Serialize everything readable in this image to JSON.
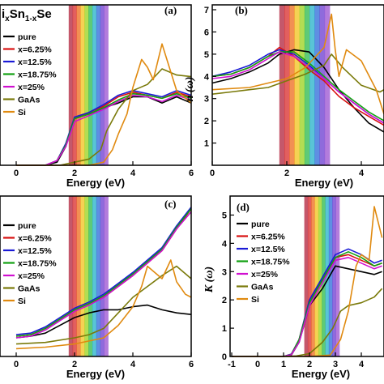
{
  "figure": {
    "title_base": "i",
    "title_sub1": "x",
    "title_mid": "Sn",
    "title_sub2": "1-x",
    "title_end": "Se"
  },
  "colors": {
    "pure": "#000000",
    "x=6.25%": "#d81010",
    "x=12.5%": "#1a1ad6",
    "x=18.75%": "#11a011",
    "x=25%": "#d010d0",
    "GaAs": "#7a7a0a",
    "Si": "#e08a10"
  },
  "chart_data": [
    {
      "type": "line",
      "panel_label": "(a)",
      "xlabel": "Energy (eV)",
      "ylabel": "",
      "xlim": [
        0,
        6
      ],
      "ylim": [
        0,
        1
      ],
      "xticks": [
        "0",
        "2",
        "4",
        "6"
      ],
      "legend_position": "left",
      "rainbow_band_ev": [
        1.8,
        3.15
      ],
      "series": [
        {
          "name": "pure",
          "x": [
            0,
            1,
            1.4,
            1.7,
            2.0,
            2.5,
            3.0,
            3.5,
            4.0,
            4.5,
            5.0,
            5.5,
            6.0
          ],
          "values": [
            0,
            0,
            0.02,
            0.12,
            0.3,
            0.33,
            0.37,
            0.4,
            0.44,
            0.44,
            0.4,
            0.44,
            0.4
          ]
        },
        {
          "name": "x=6.25%",
          "x": [
            0,
            1,
            1.4,
            1.7,
            2.0,
            2.5,
            3.0,
            3.5,
            4.0,
            4.5,
            5.0,
            5.5,
            6.0
          ],
          "values": [
            0,
            0,
            0.03,
            0.13,
            0.3,
            0.34,
            0.38,
            0.44,
            0.47,
            0.45,
            0.43,
            0.47,
            0.44
          ]
        },
        {
          "name": "x=12.5%",
          "x": [
            0,
            1,
            1.4,
            1.7,
            2.0,
            2.5,
            3.0,
            3.5,
            4.0,
            4.5,
            5.0,
            5.5,
            6.0
          ],
          "values": [
            0,
            0,
            0.03,
            0.14,
            0.31,
            0.34,
            0.39,
            0.45,
            0.48,
            0.46,
            0.44,
            0.48,
            0.45
          ]
        },
        {
          "name": "x=18.75%",
          "x": [
            0,
            1,
            1.4,
            1.7,
            2.0,
            2.5,
            3.0,
            3.5,
            4.0,
            4.5,
            5.0,
            5.5,
            6.0
          ],
          "values": [
            0,
            0,
            0.03,
            0.13,
            0.3,
            0.33,
            0.37,
            0.42,
            0.46,
            0.45,
            0.43,
            0.46,
            0.43
          ]
        },
        {
          "name": "x=25%",
          "x": [
            0,
            1,
            1.4,
            1.7,
            2.0,
            2.5,
            3.0,
            3.5,
            4.0,
            4.5,
            5.0,
            5.5,
            6.0
          ],
          "values": [
            0,
            0,
            0.03,
            0.12,
            0.28,
            0.32,
            0.36,
            0.41,
            0.45,
            0.44,
            0.41,
            0.45,
            0.42
          ]
        },
        {
          "name": "GaAs",
          "x": [
            0,
            1,
            1.5,
            2.0,
            2.5,
            2.9,
            3.1,
            3.5,
            4.0,
            4.5,
            5.0,
            5.5,
            6.0
          ],
          "values": [
            0,
            0,
            0,
            0.02,
            0.04,
            0.1,
            0.22,
            0.36,
            0.48,
            0.52,
            0.62,
            0.58,
            0.57
          ]
        },
        {
          "name": "Si",
          "x": [
            0,
            2.5,
            3.0,
            3.3,
            3.5,
            3.8,
            4.0,
            4.3,
            4.5,
            4.7,
            5.0,
            5.3,
            5.5,
            6.0
          ],
          "values": [
            0,
            0,
            0.02,
            0.1,
            0.2,
            0.33,
            0.5,
            0.68,
            0.63,
            0.55,
            0.78,
            0.6,
            0.48,
            0.4
          ]
        }
      ]
    },
    {
      "type": "line",
      "panel_label": "(b)",
      "xlabel": "Energy (eV)",
      "ylabel": "n (ω)",
      "xlim": [
        0,
        4.8
      ],
      "ylim": [
        0,
        7
      ],
      "xticks": [
        "0",
        "2",
        "4"
      ],
      "yticks": [
        "1",
        "2",
        "3",
        "4",
        "5",
        "6",
        "7"
      ],
      "rainbow_band_ev": [
        1.8,
        3.15
      ],
      "series": [
        {
          "name": "pure",
          "x": [
            0,
            0.5,
            1.0,
            1.5,
            1.8,
            2.2,
            2.6,
            3.0,
            3.4,
            3.8,
            4.2,
            4.8
          ],
          "values": [
            3.7,
            3.9,
            4.2,
            4.6,
            5.0,
            5.2,
            5.1,
            4.4,
            3.4,
            2.6,
            1.9,
            1.5
          ]
        },
        {
          "name": "x=6.25%",
          "x": [
            0,
            0.5,
            1.0,
            1.5,
            1.8,
            2.2,
            2.6,
            3.0,
            3.4,
            3.8,
            4.2,
            4.8
          ],
          "values": [
            4.0,
            4.1,
            4.4,
            4.9,
            5.3,
            4.9,
            4.3,
            3.8,
            3.1,
            2.6,
            2.2,
            1.8
          ]
        },
        {
          "name": "x=12.5%",
          "x": [
            0,
            0.5,
            1.0,
            1.5,
            1.8,
            2.2,
            2.6,
            3.0,
            3.4,
            3.8,
            4.2,
            4.8
          ],
          "values": [
            4.0,
            4.2,
            4.5,
            5.0,
            5.2,
            5.0,
            4.5,
            3.9,
            3.3,
            2.8,
            2.3,
            1.9
          ]
        },
        {
          "name": "x=18.75%",
          "x": [
            0,
            0.5,
            1.0,
            1.5,
            1.8,
            2.2,
            2.6,
            3.0,
            3.4,
            3.8,
            4.2,
            4.8
          ],
          "values": [
            4.0,
            4.1,
            4.4,
            4.9,
            5.1,
            5.1,
            4.6,
            4.0,
            3.4,
            2.9,
            2.4,
            2.0
          ]
        },
        {
          "name": "x=25%",
          "x": [
            0,
            0.5,
            1.0,
            1.5,
            1.8,
            2.2,
            2.6,
            3.0,
            3.4,
            3.8,
            4.2,
            4.8
          ],
          "values": [
            3.9,
            4.0,
            4.3,
            4.8,
            5.1,
            4.9,
            4.4,
            3.9,
            3.3,
            2.8,
            2.3,
            1.9
          ]
        },
        {
          "name": "GaAs",
          "x": [
            0,
            0.5,
            1.0,
            1.5,
            2.0,
            2.5,
            3.0,
            3.2,
            3.5,
            4.0,
            4.5,
            4.8
          ],
          "values": [
            3.2,
            3.3,
            3.4,
            3.5,
            3.8,
            4.1,
            4.5,
            5.0,
            4.4,
            3.6,
            3.3,
            3.4
          ]
        },
        {
          "name": "Si",
          "x": [
            0,
            1.0,
            2.0,
            2.5,
            3.0,
            3.2,
            3.3,
            3.4,
            3.6,
            4.0,
            4.4,
            4.8
          ],
          "values": [
            3.4,
            3.5,
            3.9,
            4.4,
            5.3,
            6.8,
            5.2,
            4.0,
            5.2,
            4.7,
            3.4,
            2.3
          ]
        }
      ]
    },
    {
      "type": "line",
      "panel_label": "(c)",
      "xlabel": "Energy (eV)",
      "ylabel": "",
      "xlim": [
        0,
        6
      ],
      "ylim": [
        0,
        1
      ],
      "xticks": [
        "0",
        "2",
        "4",
        "6"
      ],
      "legend_position": "left",
      "rainbow_band_ev": [
        1.8,
        3.15
      ],
      "series": [
        {
          "name": "pure",
          "x": [
            0,
            0.5,
            1.0,
            1.5,
            2.0,
            2.5,
            3.0,
            3.5,
            4.0,
            4.5,
            5.0,
            5.5,
            6.0
          ],
          "values": [
            0.12,
            0.13,
            0.15,
            0.2,
            0.25,
            0.28,
            0.3,
            0.3,
            0.32,
            0.33,
            0.3,
            0.28,
            0.27
          ]
        },
        {
          "name": "x=6.25%",
          "x": [
            0,
            0.5,
            1.0,
            1.5,
            2.0,
            2.5,
            3.0,
            3.5,
            4.0,
            4.5,
            5.0,
            5.5,
            6.0
          ],
          "values": [
            0.13,
            0.14,
            0.18,
            0.24,
            0.3,
            0.34,
            0.38,
            0.45,
            0.52,
            0.6,
            0.68,
            0.82,
            0.95
          ]
        },
        {
          "name": "x=12.5%",
          "x": [
            0,
            0.5,
            1.0,
            1.5,
            2.0,
            2.5,
            3.0,
            3.5,
            4.0,
            4.5,
            5.0,
            5.5,
            6.0
          ],
          "values": [
            0.14,
            0.15,
            0.19,
            0.25,
            0.31,
            0.35,
            0.4,
            0.47,
            0.54,
            0.62,
            0.7,
            0.84,
            0.96
          ]
        },
        {
          "name": "x=18.75%",
          "x": [
            0,
            0.5,
            1.0,
            1.5,
            2.0,
            2.5,
            3.0,
            3.5,
            4.0,
            4.5,
            5.0,
            5.5,
            6.0
          ],
          "values": [
            0.13,
            0.14,
            0.18,
            0.24,
            0.3,
            0.34,
            0.39,
            0.46,
            0.53,
            0.61,
            0.69,
            0.83,
            0.95
          ]
        },
        {
          "name": "x=25%",
          "x": [
            0,
            0.5,
            1.0,
            1.5,
            2.0,
            2.5,
            3.0,
            3.5,
            4.0,
            4.5,
            5.0,
            5.5,
            6.0
          ],
          "values": [
            0.12,
            0.13,
            0.17,
            0.23,
            0.29,
            0.33,
            0.38,
            0.45,
            0.52,
            0.6,
            0.68,
            0.82,
            0.93
          ]
        },
        {
          "name": "GaAs",
          "x": [
            0,
            1.0,
            2.0,
            2.5,
            3.0,
            3.5,
            4.0,
            4.5,
            5.0,
            5.5,
            6.0
          ],
          "values": [
            0.08,
            0.09,
            0.12,
            0.14,
            0.18,
            0.28,
            0.38,
            0.45,
            0.52,
            0.58,
            0.5
          ]
        },
        {
          "name": "Si",
          "x": [
            0,
            1.0,
            2.0,
            3.0,
            3.5,
            4.0,
            4.3,
            4.5,
            5.0,
            5.3,
            5.5,
            5.8,
            6.0
          ],
          "values": [
            0.05,
            0.06,
            0.08,
            0.12,
            0.2,
            0.32,
            0.45,
            0.58,
            0.5,
            0.62,
            0.48,
            0.4,
            0.38
          ]
        }
      ]
    },
    {
      "type": "line",
      "panel_label": "(d)",
      "xlabel": "Energy (eV)",
      "ylabel": "K (ω)",
      "xlim": [
        -1,
        4.8
      ],
      "ylim": [
        0,
        5.5
      ],
      "xticks": [
        "-1",
        "0",
        "1",
        "2",
        "3",
        "4"
      ],
      "yticks": [
        "0",
        "1",
        "2",
        "3",
        "4",
        "5"
      ],
      "legend_position": "left",
      "rainbow_band_ev": [
        1.8,
        3.15
      ],
      "series": [
        {
          "name": "pure",
          "x": [
            -1,
            0.5,
            1.0,
            1.3,
            1.6,
            2.0,
            2.5,
            3.0,
            3.5,
            4.0,
            4.5,
            4.8
          ],
          "values": [
            0,
            0,
            0,
            0.05,
            0.5,
            1.8,
            2.4,
            3.2,
            3.1,
            3.0,
            2.9,
            3.0
          ]
        },
        {
          "name": "x=6.25%",
          "x": [
            -1,
            0.5,
            1.0,
            1.3,
            1.6,
            2.0,
            2.5,
            3.0,
            3.5,
            4.0,
            4.5,
            4.8
          ],
          "values": [
            0,
            0,
            0,
            0.08,
            0.6,
            2.0,
            2.7,
            3.5,
            3.6,
            3.4,
            3.2,
            3.3
          ]
        },
        {
          "name": "x=12.5%",
          "x": [
            -1,
            0.5,
            1.0,
            1.3,
            1.6,
            2.0,
            2.5,
            3.0,
            3.5,
            4.0,
            4.5,
            4.8
          ],
          "values": [
            0,
            0,
            0,
            0.08,
            0.6,
            2.0,
            2.8,
            3.6,
            3.8,
            3.6,
            3.3,
            3.4
          ]
        },
        {
          "name": "x=18.75%",
          "x": [
            -1,
            0.5,
            1.0,
            1.3,
            1.6,
            2.0,
            2.5,
            3.0,
            3.5,
            4.0,
            4.5,
            4.8
          ],
          "values": [
            0,
            0,
            0,
            0.07,
            0.6,
            1.9,
            2.7,
            3.5,
            3.7,
            3.5,
            3.2,
            3.3
          ]
        },
        {
          "name": "x=25%",
          "x": [
            -1,
            0.5,
            1.0,
            1.3,
            1.6,
            2.0,
            2.5,
            3.0,
            3.5,
            4.0,
            4.5,
            4.8
          ],
          "values": [
            0,
            0,
            0,
            0.06,
            0.5,
            1.8,
            2.6,
            3.4,
            3.5,
            3.3,
            3.1,
            3.2
          ]
        },
        {
          "name": "GaAs",
          "x": [
            -1,
            1.0,
            1.5,
            2.0,
            2.5,
            2.9,
            3.2,
            3.5,
            4.0,
            4.5,
            4.8
          ],
          "values": [
            0,
            0,
            0.02,
            0.1,
            0.5,
            1.0,
            1.6,
            1.8,
            1.9,
            2.1,
            2.4
          ]
        },
        {
          "name": "Si",
          "x": [
            -1,
            2.0,
            2.8,
            3.2,
            3.5,
            3.8,
            4.0,
            4.3,
            4.5,
            4.8
          ],
          "values": [
            0,
            0,
            0.05,
            0.6,
            1.6,
            3.2,
            3.6,
            3.4,
            5.3,
            4.2
          ]
        }
      ]
    }
  ],
  "legend": {
    "a": [
      "pure",
      "x=6.25%",
      "x=12.5%",
      "x=18.75%",
      "x=25%",
      "GaAs",
      "Si"
    ],
    "c": [
      "pure",
      "x=6.25%",
      "x=12.5%",
      "x=18.75%",
      "x=25%",
      "GaAs",
      "Si"
    ],
    "d": [
      "pure",
      "x=6.25%",
      "x=12.5%",
      "x=18.75%",
      "x=25%",
      "GaAs",
      "Si"
    ]
  }
}
